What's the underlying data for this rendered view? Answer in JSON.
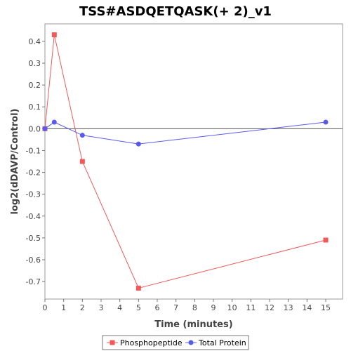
{
  "chart_data": {
    "type": "line",
    "title": "TSS#ASDQETQASK(+ 2)_v1",
    "xlabel": "Time (minutes)",
    "ylabel": "log2(dDAVP/Control)",
    "xlim": [
      0,
      15.9
    ],
    "ylim": [
      -0.78,
      0.48
    ],
    "x_ticks": [
      0,
      1,
      2,
      3,
      4,
      5,
      6,
      7,
      8,
      9,
      10,
      11,
      12,
      13,
      14,
      15
    ],
    "y_ticks": [
      0.4,
      0.3,
      0.2,
      0.1,
      0.0,
      -0.1,
      -0.2,
      -0.3,
      -0.4,
      -0.5,
      -0.6,
      -0.7
    ],
    "y_tick_labels": [
      "0.4",
      "0.3",
      "0.2",
      "0.1",
      "0.0",
      "-0.1",
      "-0.2",
      "-0.3",
      "-0.4",
      "-0.5",
      "-0.6",
      "-0.7"
    ],
    "grid": false,
    "zero_line": true,
    "legend_position": "bottom",
    "series": [
      {
        "name": "Phosphopeptide",
        "color": "#f05a5a",
        "marker": "square",
        "x": [
          0,
          0.5,
          2,
          5,
          15
        ],
        "y": [
          0.0,
          0.43,
          -0.15,
          -0.73,
          -0.51
        ]
      },
      {
        "name": "Total Protein",
        "color": "#5a5af0",
        "marker": "circle",
        "x": [
          0,
          0.5,
          2,
          5,
          15
        ],
        "y": [
          0.0,
          0.03,
          -0.03,
          -0.07,
          0.03
        ]
      }
    ]
  }
}
